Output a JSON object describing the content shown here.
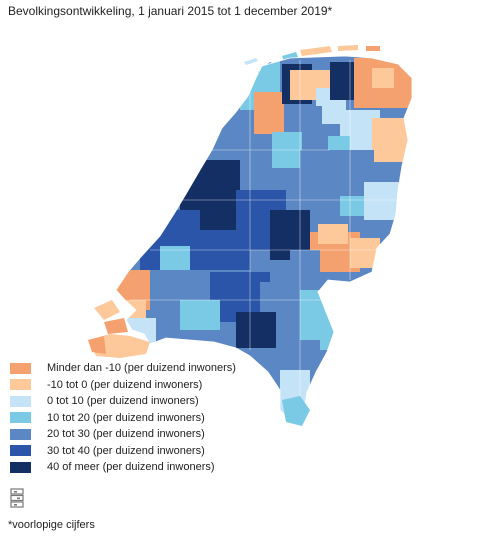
{
  "title": "Bevolkingsontwikkeling, 1 januari 2015 tot 1 december 2019*",
  "legend": [
    {
      "label": "Minder dan -10 (per duizend inwoners)",
      "color": "#f4a16f"
    },
    {
      "label": "-10 tot 0 (per duizend inwoners)",
      "color": "#fdc89a"
    },
    {
      "label": "0 tot 10 (per duizend inwoners)",
      "color": "#c5e3f6"
    },
    {
      "label": "10 tot 20 (per duizend inwoners)",
      "color": "#7ac9e5"
    },
    {
      "label": "20 tot 30 (per duizend inwoners)",
      "color": "#5b87c4"
    },
    {
      "label": "30 tot 40 (per duizend inwoners)",
      "color": "#2a55a8"
    },
    {
      "label": "40 of meer (per duizend inwoners)",
      "color": "#142f63"
    }
  ],
  "footnote": "*voorlopige cijfers",
  "logo_icon": "cbs-logo-icon"
}
